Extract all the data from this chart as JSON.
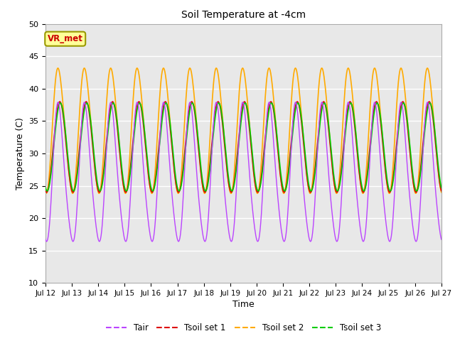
{
  "title": "Soil Temperature at -4cm",
  "xlabel": "Time",
  "ylabel": "Temperature (C)",
  "ylim": [
    10,
    50
  ],
  "yticks": [
    10,
    15,
    20,
    25,
    30,
    35,
    40,
    45,
    50
  ],
  "x_labels": [
    "Jul 12",
    "Jul 13",
    "Jul 14",
    "Jul 15",
    "Jul 16",
    "Jul 17",
    "Jul 18",
    "Jul 19",
    "Jul 20",
    "Jul 21",
    "Jul 22",
    "Jul 23",
    "Jul 24",
    "Jul 25",
    "Jul 26",
    "Jul 27"
  ],
  "colors": {
    "Tair": "#bb44ff",
    "Tsoil1": "#dd0000",
    "Tsoil2": "#ffaa00",
    "Tsoil3": "#00cc00"
  },
  "legend_labels": [
    "Tair",
    "Tsoil set 1",
    "Tsoil set 2",
    "Tsoil set 3"
  ],
  "background_color": "#e8e8e8",
  "grid_color": "#ffffff",
  "annotation_text": "VR_met",
  "annotation_color": "#cc0000",
  "annotation_bg": "#ffff99",
  "annotation_border": "#999900",
  "figsize": [
    6.4,
    4.8
  ],
  "dpi": 100
}
